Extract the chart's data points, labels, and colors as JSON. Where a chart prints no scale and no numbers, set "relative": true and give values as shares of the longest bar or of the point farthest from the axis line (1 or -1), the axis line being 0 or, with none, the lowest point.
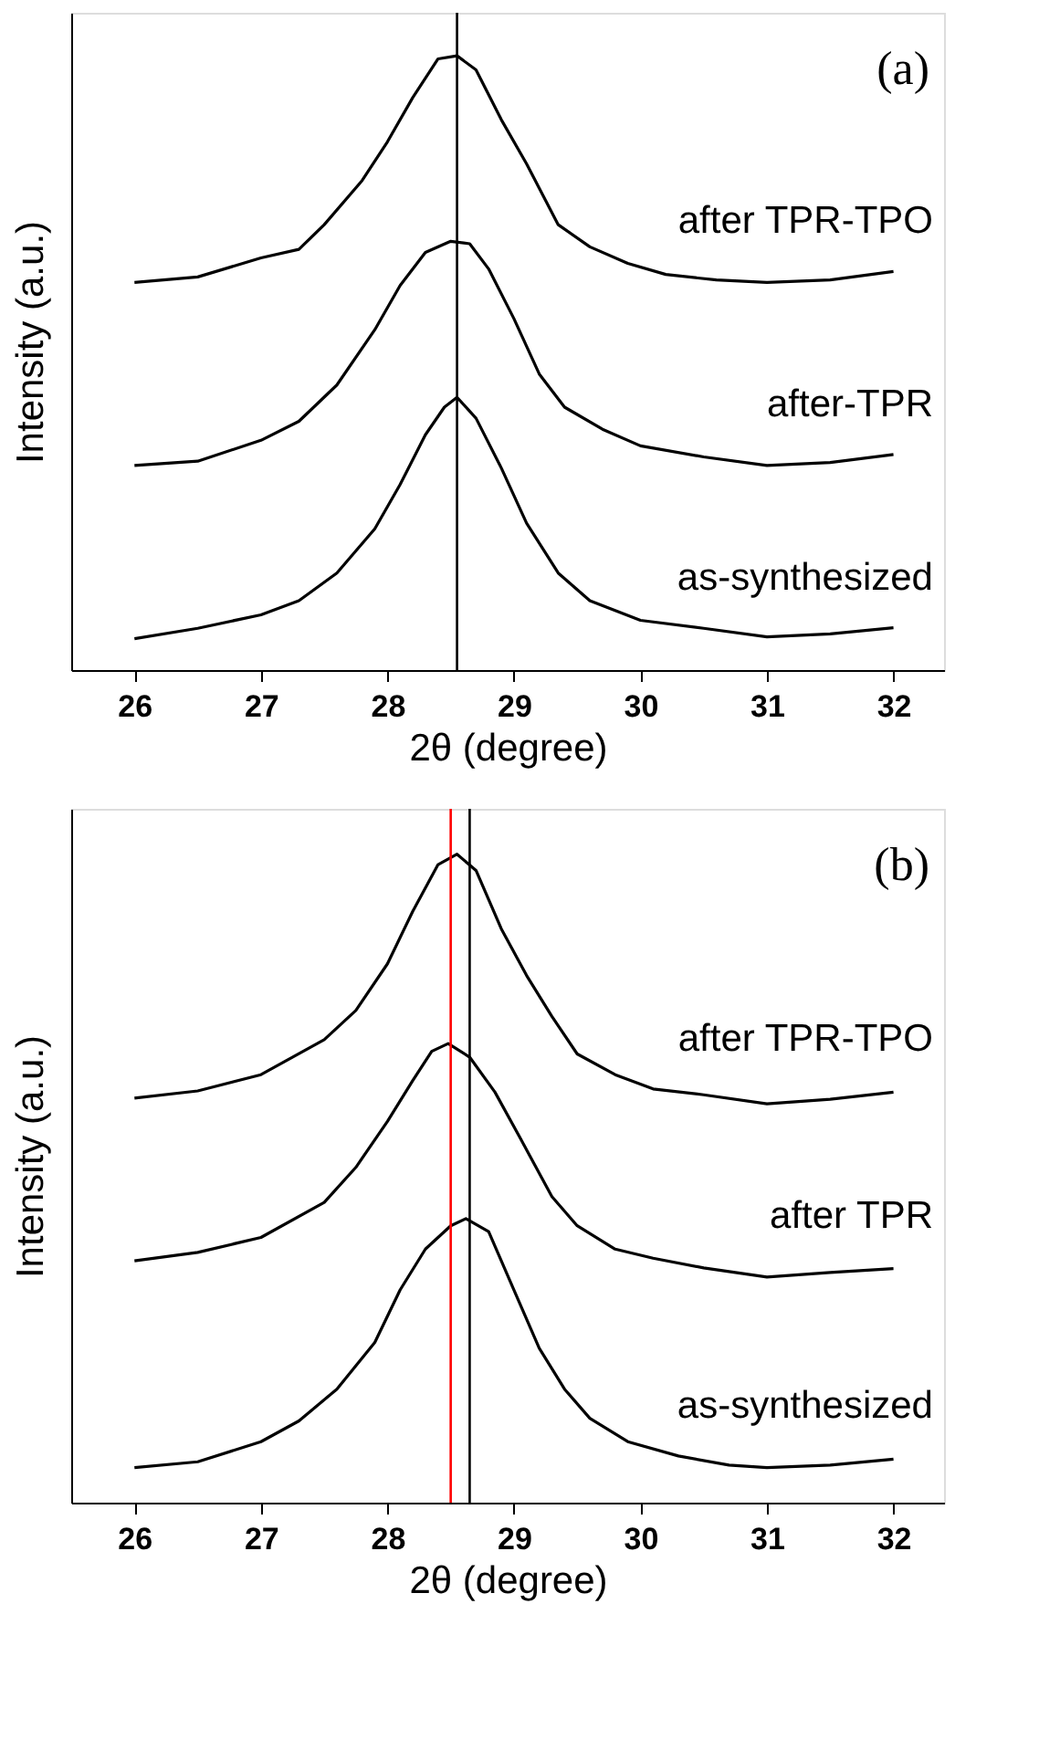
{
  "chart_data": [
    {
      "type": "line",
      "relative": true,
      "xlabel": "2θ (degree)",
      "ylabel": "Intensity (a.u.)",
      "xlim": [
        25.5,
        32.4
      ],
      "xticks": [
        26,
        27,
        28,
        29,
        30,
        31,
        32
      ],
      "tick_labels": "x",
      "grid": false,
      "line_style": "solid",
      "marker": "none",
      "series": [
        {
          "name": "after TPR-TPO",
          "color": "#000000",
          "x": [
            26,
            26.5,
            27,
            27.3,
            27.5,
            27.8,
            28,
            28.2,
            28.4,
            28.55,
            28.7,
            28.9,
            29.1,
            29.35,
            29.6,
            29.9,
            30.2,
            30.6,
            31,
            31.5,
            32
          ],
          "values": [
            0.631,
            0.64,
            0.671,
            0.685,
            0.725,
            0.797,
            0.86,
            0.932,
            0.995,
            1.0,
            0.977,
            0.896,
            0.824,
            0.725,
            0.689,
            0.662,
            0.644,
            0.635,
            0.631,
            0.635,
            0.649
          ]
        },
        {
          "name": "after-TPR",
          "color": "#000000",
          "x": [
            26,
            26.5,
            27,
            27.3,
            27.6,
            27.9,
            28.1,
            28.3,
            28.5,
            28.65,
            28.8,
            29,
            29.2,
            29.4,
            29.7,
            30,
            30.5,
            31,
            31.5,
            32
          ],
          "values": [
            0.333,
            0.34,
            0.374,
            0.405,
            0.464,
            0.554,
            0.626,
            0.68,
            0.698,
            0.694,
            0.653,
            0.572,
            0.482,
            0.428,
            0.392,
            0.365,
            0.347,
            0.333,
            0.338,
            0.351
          ]
        },
        {
          "name": "as-synthesized",
          "color": "#000000",
          "x": [
            26,
            26.5,
            27,
            27.3,
            27.6,
            27.9,
            28.1,
            28.3,
            28.45,
            28.55,
            28.7,
            28.9,
            29.1,
            29.35,
            29.6,
            30,
            30.5,
            31,
            31.5,
            32
          ],
          "values": [
            0.051,
            0.068,
            0.09,
            0.113,
            0.158,
            0.23,
            0.302,
            0.383,
            0.428,
            0.444,
            0.41,
            0.329,
            0.239,
            0.158,
            0.113,
            0.081,
            0.068,
            0.054,
            0.059,
            0.069
          ]
        }
      ],
      "ref_lines": [
        {
          "axis": "x",
          "value": 28.55,
          "color": "#000000"
        }
      ],
      "annotations": [
        "(a)"
      ]
    },
    {
      "type": "line",
      "relative": true,
      "xlabel": "2θ (degree)",
      "ylabel": "Intensity (a.u.)",
      "xlim": [
        25.5,
        32.4
      ],
      "xticks": [
        26,
        27,
        28,
        29,
        30,
        31,
        32
      ],
      "tick_labels": "x",
      "grid": false,
      "line_style": "solid",
      "marker": "none",
      "series": [
        {
          "name": "after TPR-TPO",
          "color": "#000000",
          "x": [
            26,
            26.5,
            27,
            27.5,
            27.75,
            28,
            28.2,
            28.4,
            28.55,
            28.7,
            28.9,
            29.1,
            29.3,
            29.5,
            29.8,
            30.1,
            30.5,
            31,
            31.5,
            32
          ],
          "values": [
            0.624,
            0.635,
            0.66,
            0.714,
            0.759,
            0.831,
            0.912,
            0.984,
            1.0,
            0.975,
            0.885,
            0.813,
            0.75,
            0.692,
            0.66,
            0.638,
            0.629,
            0.615,
            0.622,
            0.633
          ]
        },
        {
          "name": "after TPR",
          "color": "#000000",
          "x": [
            26,
            26.5,
            27,
            27.5,
            27.75,
            28,
            28.2,
            28.35,
            28.48,
            28.65,
            28.85,
            29.05,
            29.3,
            29.5,
            29.8,
            30.1,
            30.5,
            31,
            31.5,
            32
          ],
          "values": [
            0.373,
            0.386,
            0.409,
            0.463,
            0.517,
            0.588,
            0.651,
            0.696,
            0.708,
            0.687,
            0.633,
            0.562,
            0.472,
            0.427,
            0.391,
            0.377,
            0.362,
            0.348,
            0.355,
            0.361
          ]
        },
        {
          "name": "as-synthesized",
          "color": "#000000",
          "x": [
            26,
            26.5,
            27,
            27.3,
            27.6,
            27.9,
            28.1,
            28.3,
            28.5,
            28.62,
            28.8,
            29,
            29.2,
            29.4,
            29.6,
            29.9,
            30.3,
            30.7,
            31,
            31.5,
            32
          ],
          "values": [
            0.054,
            0.063,
            0.094,
            0.126,
            0.175,
            0.247,
            0.328,
            0.391,
            0.427,
            0.438,
            0.418,
            0.328,
            0.238,
            0.175,
            0.13,
            0.094,
            0.072,
            0.058,
            0.054,
            0.058,
            0.067
          ]
        }
      ],
      "ref_lines": [
        {
          "axis": "x",
          "value": 28.5,
          "color": "#ff0000"
        },
        {
          "axis": "x",
          "value": 28.65,
          "color": "#000000"
        }
      ],
      "annotations": [
        "(b)"
      ]
    }
  ]
}
